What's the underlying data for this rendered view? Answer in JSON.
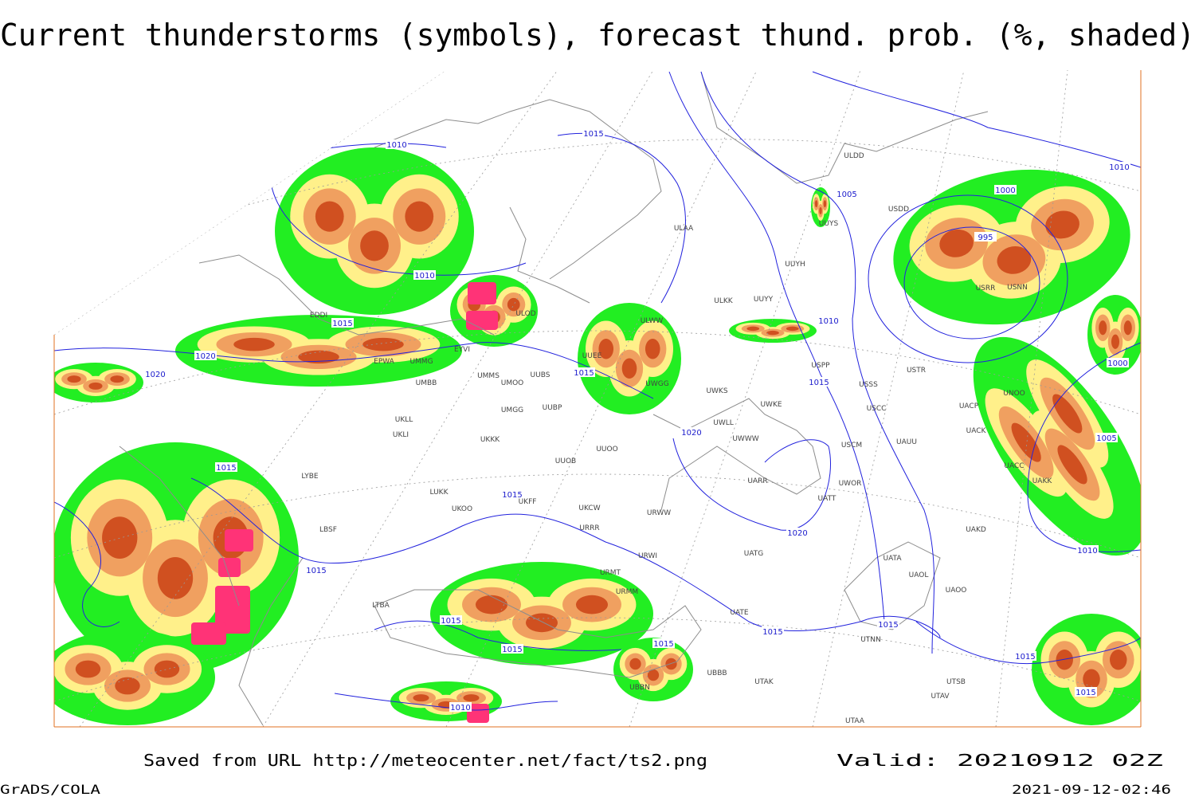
{
  "header": {
    "title": "Current thunderstorms (symbols), forecast thund. prob. (%, shaded)"
  },
  "map": {
    "isobar_labels": [
      "1010",
      "1015",
      "1010",
      "1015",
      "1020",
      "1020",
      "1015",
      "1015",
      "1015",
      "1015",
      "1015",
      "1015",
      "1010",
      "1015",
      "1015",
      "1020",
      "1020",
      "1005",
      "1010",
      "1015",
      "1000",
      "995",
      "1010",
      "1000",
      "1005",
      "1010",
      "1015",
      "1015",
      "1015"
    ],
    "stations": [
      "ULDD",
      "USDD",
      "ULAA",
      "UUYS",
      "UUYH",
      "ULKK",
      "UUYY",
      "ULWW",
      "ULOD",
      "UUEE",
      "UWGG",
      "UWKS",
      "UWKE",
      "USPP",
      "USSS",
      "USCC",
      "USTR",
      "UMMS",
      "UMOO",
      "UUBS",
      "UMMG",
      "UMBB",
      "UMGG",
      "UUBP",
      "UKLL",
      "UKLI",
      "UKKK",
      "UUOB",
      "UUOO",
      "UWWW",
      "UWLL",
      "URWW",
      "UKOO",
      "LUKK",
      "UKFF",
      "UKCW",
      "URRR",
      "URWI",
      "URMT",
      "URMM",
      "UATG",
      "UARR",
      "UATT",
      "UWOR",
      "USCM",
      "UAUU",
      "UACK",
      "UACP",
      "UNOO",
      "UACC",
      "UAKK",
      "UAKD",
      "UATA",
      "UAOL",
      "UAOO",
      "UATE",
      "UTNN",
      "UTAK",
      "UTSB",
      "UTAV",
      "UTAA",
      "LYBE",
      "LBSF",
      "LTBA",
      "UBBB",
      "UBBN",
      "EDDI",
      "EPWA",
      "EYVI",
      "USRR",
      "USNN"
    ]
  },
  "footer": {
    "source": "Saved from URL http://meteocenter.net/fact/ts2.png",
    "valid": "Valid: 20210912 02Z",
    "software": "GrADS/COLA",
    "timestamp": "2021-09-12-02:46"
  }
}
